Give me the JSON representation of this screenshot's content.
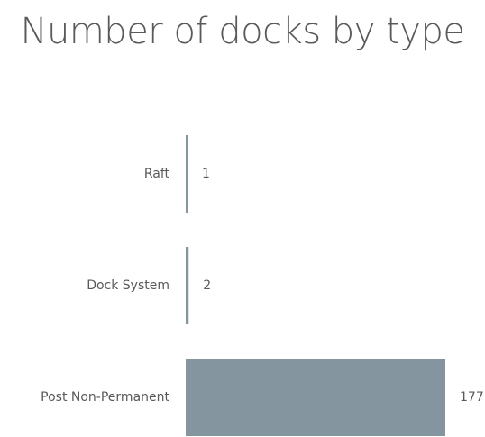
{
  "chart_data": {
    "type": "bar",
    "orientation": "horizontal",
    "title": "Number of docks by type",
    "categories": [
      "Raft",
      "Dock System",
      "Post Non-Permanent"
    ],
    "values": [
      1,
      2,
      177
    ],
    "data_labels": [
      "1",
      "2",
      "177"
    ],
    "xlabel": "",
    "ylabel": "",
    "xlim": [
      0,
      177
    ],
    "grid": false,
    "legend": "none",
    "bar_color": "#84959F"
  }
}
